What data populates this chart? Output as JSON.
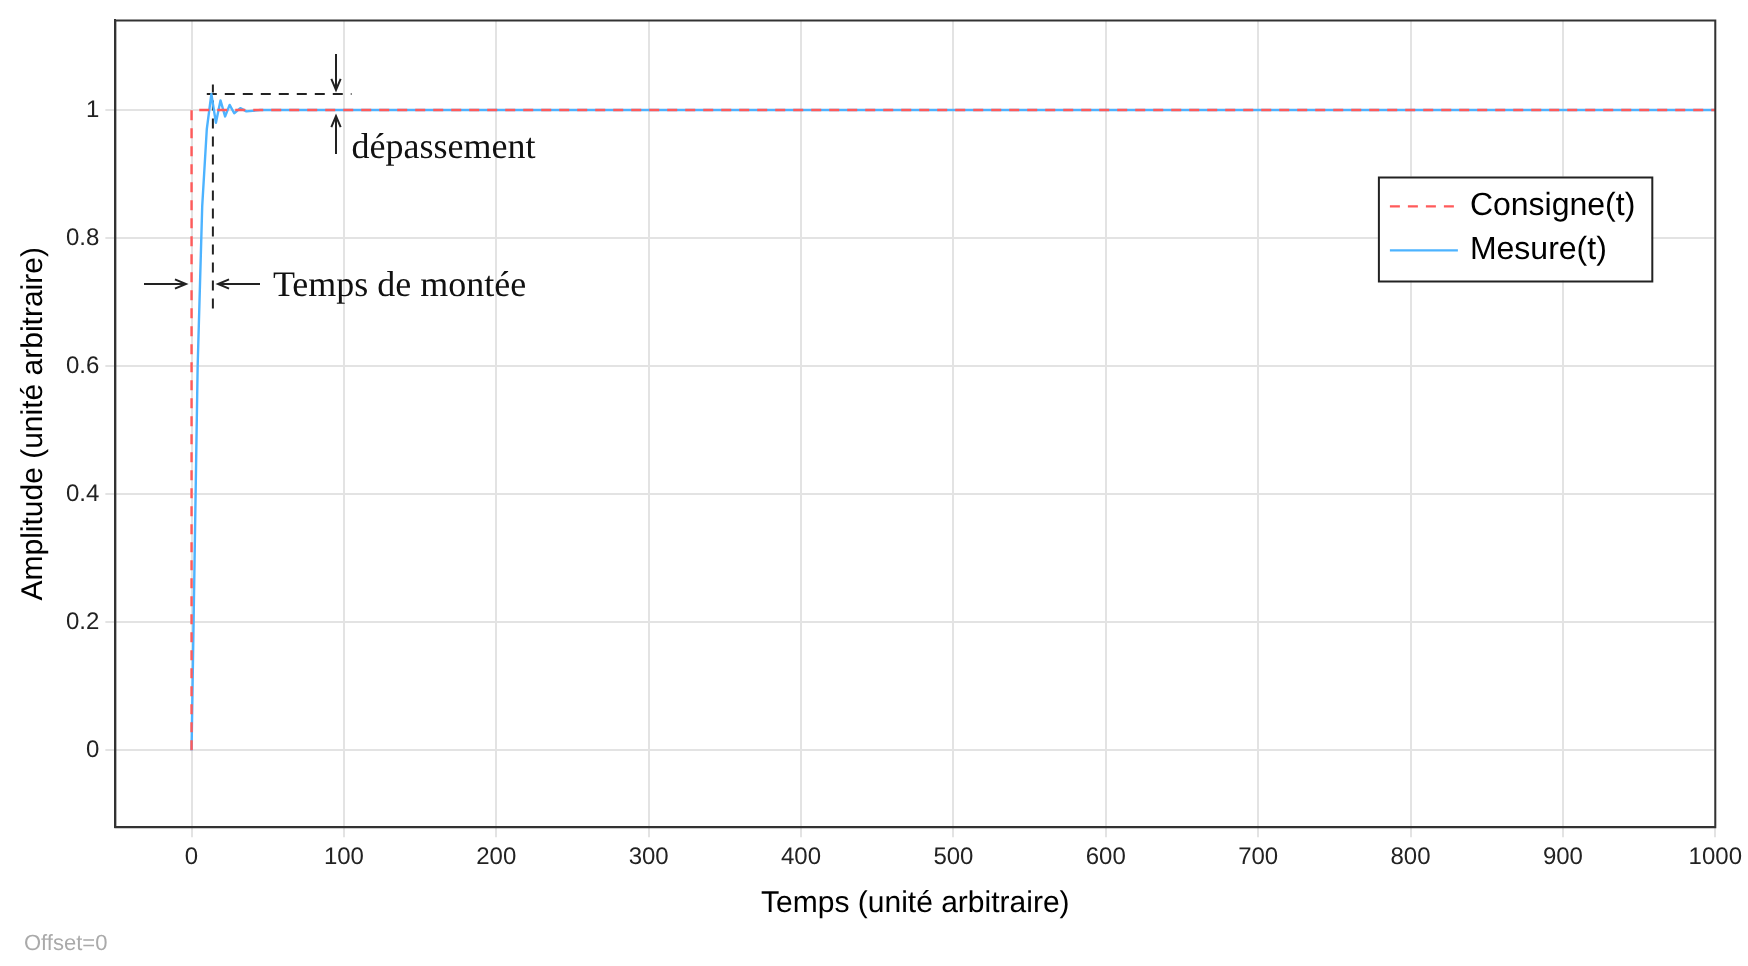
{
  "chart_data": {
    "type": "line",
    "xlabel": "Temps (unité arbitraire)",
    "ylabel": "Amplitude (unité arbitraire)",
    "xlim": [
      -50,
      1000
    ],
    "xticks": [
      0,
      100,
      200,
      300,
      400,
      500,
      600,
      700,
      800,
      900,
      1000
    ],
    "ylim": [
      -0.12,
      1.14
    ],
    "yticks": [
      0,
      0.2,
      0.4,
      0.6,
      0.8,
      1
    ],
    "grid": true,
    "legend": "top right",
    "marker": "none",
    "series": [
      {
        "name": "Consigne(t)",
        "color": "#ff5a5a",
        "line_style": "dashed",
        "x": [
          0,
          0,
          1000
        ],
        "values": [
          0,
          1,
          1
        ]
      },
      {
        "name": "Mesure(t)",
        "color": "#4db3ff",
        "line_style": "solid",
        "x": [
          0,
          2,
          4,
          7,
          10,
          13,
          16,
          19,
          22,
          25,
          28,
          32,
          36,
          45,
          1000
        ],
        "values": [
          0,
          0.3,
          0.6,
          0.85,
          0.97,
          1.025,
          0.98,
          1.015,
          0.99,
          1.008,
          0.995,
          1.003,
          0.998,
          1,
          1
        ]
      },
      {
        "color": "#222222",
        "line_style": "dashed",
        "x": [
          10,
          105
        ],
        "values": [
          1.025,
          1.025
        ]
      },
      {
        "color": "#222222",
        "line_style": "dashed",
        "x": [
          14,
          14
        ],
        "values": [
          0.69,
          1.04
        ]
      }
    ],
    "annotations": [
      "dépassement",
      "Temps de montée",
      "Offset=0"
    ]
  }
}
